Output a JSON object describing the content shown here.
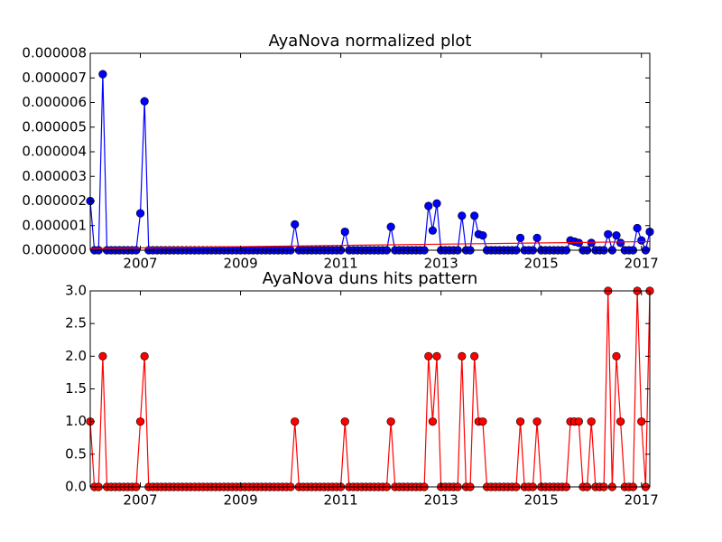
{
  "chart_data": [
    {
      "type": "line",
      "title": "AyaNova normalized plot",
      "x": [
        "2006-01",
        "2006-02",
        "2006-03",
        "2006-04",
        "2006-05",
        "2006-06",
        "2006-07",
        "2006-08",
        "2006-09",
        "2006-10",
        "2006-11",
        "2006-12",
        "2007-01",
        "2007-02",
        "2007-03",
        "2007-04",
        "2007-05",
        "2007-06",
        "2007-07",
        "2007-08",
        "2007-09",
        "2007-10",
        "2007-11",
        "2007-12",
        "2008-01",
        "2008-02",
        "2008-03",
        "2008-04",
        "2008-05",
        "2008-06",
        "2008-07",
        "2008-08",
        "2008-09",
        "2008-10",
        "2008-11",
        "2008-12",
        "2009-01",
        "2009-02",
        "2009-03",
        "2009-04",
        "2009-05",
        "2009-06",
        "2009-07",
        "2009-08",
        "2009-09",
        "2009-10",
        "2009-11",
        "2009-12",
        "2010-01",
        "2010-02",
        "2010-03",
        "2010-04",
        "2010-05",
        "2010-06",
        "2010-07",
        "2010-08",
        "2010-09",
        "2010-10",
        "2010-11",
        "2010-12",
        "2011-01",
        "2011-02",
        "2011-03",
        "2011-04",
        "2011-05",
        "2011-06",
        "2011-07",
        "2011-08",
        "2011-09",
        "2011-10",
        "2011-11",
        "2011-12",
        "2012-01",
        "2012-02",
        "2012-03",
        "2012-04",
        "2012-05",
        "2012-06",
        "2012-07",
        "2012-08",
        "2012-09",
        "2012-10",
        "2012-11",
        "2012-12",
        "2013-01",
        "2013-02",
        "2013-03",
        "2013-04",
        "2013-05",
        "2013-06",
        "2013-07",
        "2013-08",
        "2013-09",
        "2013-10",
        "2013-11",
        "2013-12",
        "2014-01",
        "2014-02",
        "2014-03",
        "2014-04",
        "2014-05",
        "2014-06",
        "2014-07",
        "2014-08",
        "2014-09",
        "2014-10",
        "2014-11",
        "2014-12",
        "2015-01",
        "2015-02",
        "2015-03",
        "2015-04",
        "2015-05",
        "2015-06",
        "2015-07",
        "2015-08",
        "2015-09",
        "2015-10",
        "2015-11",
        "2015-12",
        "2016-01",
        "2016-02",
        "2016-03",
        "2016-04",
        "2016-05",
        "2016-06",
        "2016-07",
        "2016-08",
        "2016-09",
        "2016-10",
        "2016-11",
        "2016-12",
        "2017-01",
        "2017-02",
        "2017-03"
      ],
      "series": [
        {
          "color": "#0000ff",
          "marker": true,
          "values": [
            2e-06,
            0,
            0,
            7.15e-06,
            0,
            0,
            0,
            0,
            0,
            0,
            0,
            0,
            1.5e-06,
            6.05e-06,
            0,
            0,
            0,
            0,
            0,
            0,
            0,
            0,
            0,
            0,
            0,
            0,
            0,
            0,
            0,
            0,
            0,
            0,
            0,
            0,
            0,
            0,
            0,
            0,
            0,
            0,
            0,
            0,
            0,
            0,
            0,
            0,
            0,
            0,
            0,
            1.05e-06,
            0,
            0,
            0,
            0,
            0,
            0,
            0,
            0,
            0,
            0,
            0,
            7.5e-07,
            0,
            0,
            0,
            0,
            0,
            0,
            0,
            0,
            0,
            0,
            9.5e-07,
            0,
            0,
            0,
            0,
            0,
            0,
            0,
            0,
            1.8e-06,
            8e-07,
            1.9e-06,
            0,
            0,
            0,
            0,
            0,
            1.4e-06,
            0,
            0,
            1.4e-06,
            6.5e-07,
            6e-07,
            0,
            0,
            0,
            0,
            0,
            0,
            0,
            0,
            5e-07,
            0,
            0,
            0,
            5e-07,
            0,
            0,
            0,
            0,
            0,
            0,
            0,
            4e-07,
            3.5e-07,
            3e-07,
            0,
            0,
            3e-07,
            0,
            0,
            0,
            6.5e-07,
            0,
            6e-07,
            3e-07,
            0,
            0,
            0,
            9e-07,
            4e-07,
            0,
            7.5e-07
          ]
        },
        {
          "color": "#ff0000",
          "marker": false,
          "x": [
            "2006-01",
            "2017-03"
          ],
          "values": [
            7e-08,
            3.5e-07
          ]
        }
      ],
      "xlim": [
        "2006-01",
        "2017-03"
      ],
      "xticks": [
        2007,
        2009,
        2011,
        2013,
        2015,
        2017
      ],
      "ylim": [
        0,
        8e-06
      ],
      "yticks": [
        {
          "value": 0,
          "label": "0.000000"
        },
        {
          "value": 1e-06,
          "label": "0.000001"
        },
        {
          "value": 2e-06,
          "label": "0.000002"
        },
        {
          "value": 3e-06,
          "label": "0.000003"
        },
        {
          "value": 4e-06,
          "label": "0.000004"
        },
        {
          "value": 5e-06,
          "label": "0.000005"
        },
        {
          "value": 6e-06,
          "label": "0.000006"
        },
        {
          "value": 7e-06,
          "label": "0.000007"
        },
        {
          "value": 8e-06,
          "label": "0.000008"
        }
      ]
    },
    {
      "type": "line",
      "title": "AyaNova duns hits pattern",
      "x": [
        "2006-01",
        "2006-02",
        "2006-03",
        "2006-04",
        "2006-05",
        "2006-06",
        "2006-07",
        "2006-08",
        "2006-09",
        "2006-10",
        "2006-11",
        "2006-12",
        "2007-01",
        "2007-02",
        "2007-03",
        "2007-04",
        "2007-05",
        "2007-06",
        "2007-07",
        "2007-08",
        "2007-09",
        "2007-10",
        "2007-11",
        "2007-12",
        "2008-01",
        "2008-02",
        "2008-03",
        "2008-04",
        "2008-05",
        "2008-06",
        "2008-07",
        "2008-08",
        "2008-09",
        "2008-10",
        "2008-11",
        "2008-12",
        "2009-01",
        "2009-02",
        "2009-03",
        "2009-04",
        "2009-05",
        "2009-06",
        "2009-07",
        "2009-08",
        "2009-09",
        "2009-10",
        "2009-11",
        "2009-12",
        "2010-01",
        "2010-02",
        "2010-03",
        "2010-04",
        "2010-05",
        "2010-06",
        "2010-07",
        "2010-08",
        "2010-09",
        "2010-10",
        "2010-11",
        "2010-12",
        "2011-01",
        "2011-02",
        "2011-03",
        "2011-04",
        "2011-05",
        "2011-06",
        "2011-07",
        "2011-08",
        "2011-09",
        "2011-10",
        "2011-11",
        "2011-12",
        "2012-01",
        "2012-02",
        "2012-03",
        "2012-04",
        "2012-05",
        "2012-06",
        "2012-07",
        "2012-08",
        "2012-09",
        "2012-10",
        "2012-11",
        "2012-12",
        "2013-01",
        "2013-02",
        "2013-03",
        "2013-04",
        "2013-05",
        "2013-06",
        "2013-07",
        "2013-08",
        "2013-09",
        "2013-10",
        "2013-11",
        "2013-12",
        "2014-01",
        "2014-02",
        "2014-03",
        "2014-04",
        "2014-05",
        "2014-06",
        "2014-07",
        "2014-08",
        "2014-09",
        "2014-10",
        "2014-11",
        "2014-12",
        "2015-01",
        "2015-02",
        "2015-03",
        "2015-04",
        "2015-05",
        "2015-06",
        "2015-07",
        "2015-08",
        "2015-09",
        "2015-10",
        "2015-11",
        "2015-12",
        "2016-01",
        "2016-02",
        "2016-03",
        "2016-04",
        "2016-05",
        "2016-06",
        "2016-07",
        "2016-08",
        "2016-09",
        "2016-10",
        "2016-11",
        "2016-12",
        "2017-01",
        "2017-02",
        "2017-03"
      ],
      "series": [
        {
          "color": "#ff0000",
          "marker": true,
          "values": [
            1,
            0,
            0,
            2,
            0,
            0,
            0,
            0,
            0,
            0,
            0,
            0,
            1,
            2,
            0,
            0,
            0,
            0,
            0,
            0,
            0,
            0,
            0,
            0,
            0,
            0,
            0,
            0,
            0,
            0,
            0,
            0,
            0,
            0,
            0,
            0,
            0,
            0,
            0,
            0,
            0,
            0,
            0,
            0,
            0,
            0,
            0,
            0,
            0,
            1,
            0,
            0,
            0,
            0,
            0,
            0,
            0,
            0,
            0,
            0,
            0,
            1,
            0,
            0,
            0,
            0,
            0,
            0,
            0,
            0,
            0,
            0,
            1,
            0,
            0,
            0,
            0,
            0,
            0,
            0,
            0,
            2,
            1,
            2,
            0,
            0,
            0,
            0,
            0,
            2,
            0,
            0,
            2,
            1,
            1,
            0,
            0,
            0,
            0,
            0,
            0,
            0,
            0,
            1,
            0,
            0,
            0,
            1,
            0,
            0,
            0,
            0,
            0,
            0,
            0,
            1,
            1,
            1,
            0,
            0,
            1,
            0,
            0,
            0,
            3,
            0,
            2,
            1,
            0,
            0,
            0,
            3,
            1,
            0,
            3
          ]
        }
      ],
      "xlim": [
        "2006-01",
        "2017-03"
      ],
      "xticks": [
        2007,
        2009,
        2011,
        2013,
        2015,
        2017
      ],
      "ylim": [
        0,
        3
      ],
      "yticks": [
        {
          "value": 0,
          "label": "0.0"
        },
        {
          "value": 0.5,
          "label": "0.5"
        },
        {
          "value": 1,
          "label": "1.0"
        },
        {
          "value": 1.5,
          "label": "1.5"
        },
        {
          "value": 2,
          "label": "2.0"
        },
        {
          "value": 2.5,
          "label": "2.5"
        },
        {
          "value": 3,
          "label": "3.0"
        }
      ]
    }
  ]
}
